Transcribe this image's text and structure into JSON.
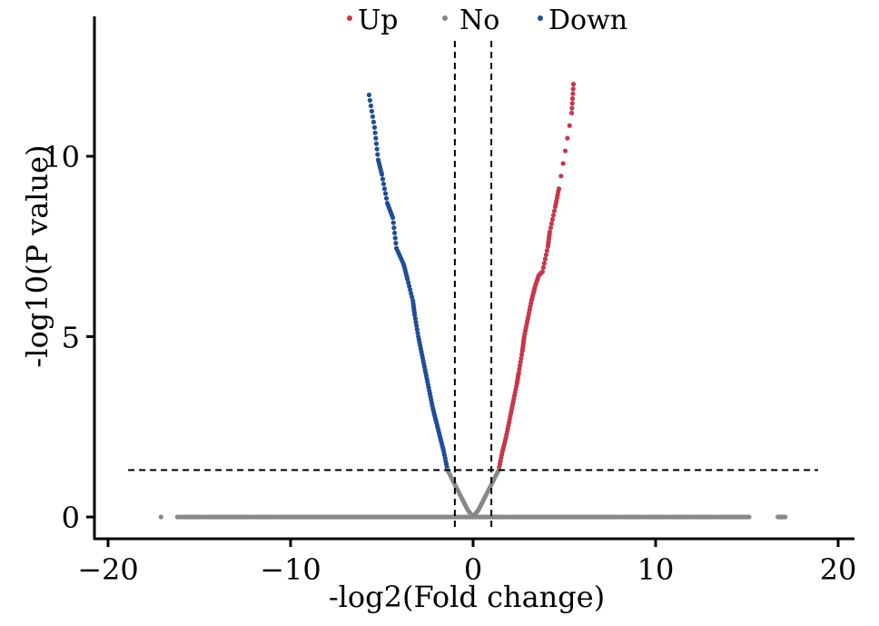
{
  "chart_data": {
    "type": "scatter",
    "title": "",
    "xlabel": "-log2(Fold change)",
    "ylabel": "-log10(P value)",
    "xlim": [
      -20.5,
      20.5
    ],
    "ylim": [
      -0.6,
      13.9
    ],
    "x_ticks": [
      -20,
      -10,
      0,
      10,
      20
    ],
    "x_tick_labels": [
      "−20",
      "−10",
      "0",
      "10",
      "20"
    ],
    "y_ticks": [
      0,
      5,
      10
    ],
    "y_tick_labels": [
      "0",
      "5",
      "10"
    ],
    "grid": false,
    "legend_placement": "top-center",
    "thresholds": {
      "x": [
        -1,
        1
      ],
      "y": 1.3,
      "y_line_extent": [
        -18.9,
        18.9
      ]
    },
    "colors": {
      "Up": "#c8374a",
      "No": "#888888",
      "Down": "#1f4e96"
    },
    "legend": [
      "Up",
      "No",
      "Down"
    ],
    "series": [
      {
        "name": "Up",
        "points": [
          [
            1.4,
            1.3
          ],
          [
            1.6,
            1.8
          ],
          [
            1.8,
            2.2
          ],
          [
            2.0,
            2.7
          ],
          [
            2.2,
            3.2
          ],
          [
            2.4,
            3.7
          ],
          [
            2.5,
            4.0
          ],
          [
            2.7,
            4.6
          ],
          [
            2.8,
            5.0
          ],
          [
            3.0,
            5.5
          ],
          [
            3.2,
            6.0
          ],
          [
            3.4,
            6.4
          ],
          [
            3.6,
            6.7
          ],
          [
            3.8,
            6.8
          ],
          [
            4.1,
            7.5
          ],
          [
            4.2,
            7.9
          ],
          [
            4.5,
            8.6
          ],
          [
            4.7,
            9.1
          ],
          [
            5.4,
            11.2
          ],
          [
            5.5,
            12.0
          ]
        ]
      },
      {
        "name": "Down",
        "points": [
          [
            -1.4,
            1.3
          ],
          [
            -1.6,
            1.8
          ],
          [
            -1.8,
            2.2
          ],
          [
            -2.0,
            2.6
          ],
          [
            -2.2,
            3.0
          ],
          [
            -2.4,
            3.5
          ],
          [
            -2.6,
            4.0
          ],
          [
            -2.8,
            4.5
          ],
          [
            -3.0,
            5.0
          ],
          [
            -3.2,
            5.6
          ],
          [
            -3.3,
            6.0
          ],
          [
            -3.6,
            6.6
          ],
          [
            -3.8,
            7.0
          ],
          [
            -4.2,
            7.45
          ],
          [
            -4.4,
            8.3
          ],
          [
            -4.7,
            8.7
          ],
          [
            -5.0,
            9.5
          ],
          [
            -5.2,
            9.9
          ],
          [
            -5.4,
            10.8
          ],
          [
            -5.7,
            11.7
          ]
        ]
      },
      {
        "name": "No",
        "points": [
          [
            -1.4,
            1.3
          ],
          [
            -1.0,
            0.9
          ],
          [
            -0.6,
            0.5
          ],
          [
            -0.3,
            0.2
          ],
          [
            0,
            0
          ],
          [
            0.3,
            0.2
          ],
          [
            0.6,
            0.5
          ],
          [
            1.0,
            0.9
          ],
          [
            1.4,
            1.3
          ],
          [
            -17.1,
            0
          ],
          [
            16.7,
            0
          ],
          [
            17.1,
            0
          ]
        ],
        "baseline": {
          "x_range": [
            -16.2,
            15.2
          ],
          "y": 0
        }
      }
    ]
  }
}
